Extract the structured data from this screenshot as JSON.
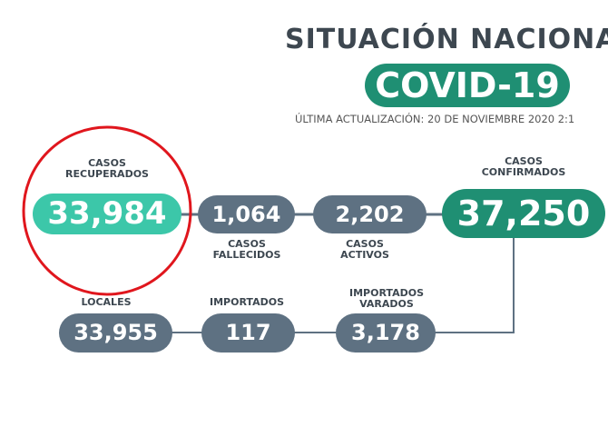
{
  "header": {
    "title": "SITUACIÓN NACIONA",
    "badge": "COVID-19",
    "updated": "ÚLTIMA ACTUALIZACIÓN: 20 DE NOVIEMBRE 2020 2:1"
  },
  "stats": [
    {
      "label": [
        "CASOS",
        "RECUPERADOS"
      ],
      "value": "33,984"
    },
    {
      "label": [
        "CASOS",
        "FALLECIDOS"
      ],
      "value": "1,064"
    },
    {
      "label": [
        "CASOS",
        "ACTIVOS"
      ],
      "value": "2,202"
    },
    {
      "label": [
        "CASOS",
        "CONFIRMADOS"
      ],
      "value": "37,250"
    },
    {
      "label": [
        "LOCALES"
      ],
      "value": "33,955"
    },
    {
      "label": [
        "IMPORTADOS"
      ],
      "value": "117"
    },
    {
      "label": [
        "IMPORTADOS",
        "VARADOS"
      ],
      "value": "3,178"
    }
  ]
}
